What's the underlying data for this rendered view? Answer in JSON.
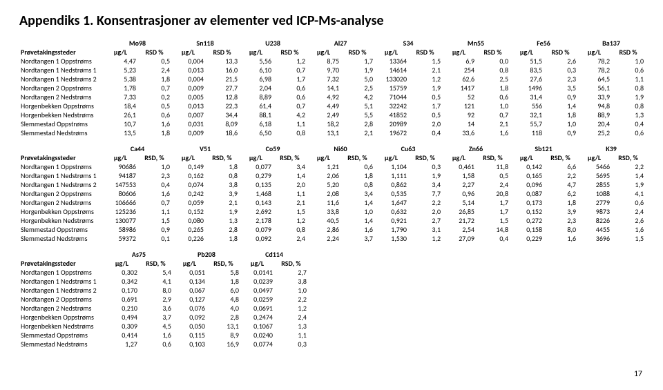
{
  "title": "Appendiks 1. Konsentrasjoner av elementer ved ICP-Ms-analyse",
  "pagenum": "17",
  "rowHeader": "Prøvetakingssteder",
  "unit_ug": "µg/L",
  "unit_rsd": "RSD %",
  "unit_rsdc": "RSD, %",
  "t1": {
    "elements": [
      "Mo98",
      "Sn118",
      "U238",
      "Al27",
      "S34",
      "Mn55",
      "Fe56",
      "Ba137"
    ],
    "rows": [
      {
        "label": "Nordtangen 1 Oppstrøms",
        "v": [
          "4,47",
          "0,5",
          "0,004",
          "13,3",
          "5,56",
          "1,2",
          "8,75",
          "1,7",
          "13364",
          "1,5",
          "6,9",
          "0,0",
          "51,5",
          "2,6",
          "78,2",
          "1,0"
        ]
      },
      {
        "label": "Nordtangen 1 Nedstrøms 1",
        "v": [
          "5,23",
          "2,4",
          "0,013",
          "16,0",
          "6,10",
          "0,7",
          "9,70",
          "1,9",
          "14614",
          "2,1",
          "254",
          "0,8",
          "83,5",
          "0,3",
          "78,2",
          "0,6"
        ]
      },
      {
        "label": "Nordtangen 1 Nedstrøms 2",
        "v": [
          "5,38",
          "1,8",
          "0,004",
          "21,5",
          "6,98",
          "1,7",
          "7,32",
          "5,0",
          "133020",
          "1,2",
          "62,6",
          "2,5",
          "27,6",
          "2,3",
          "64,5",
          "1,1"
        ]
      },
      {
        "label": "Nordtangen 2 Oppstrøms",
        "v": [
          "1,78",
          "0,7",
          "0,009",
          "27,7",
          "2,04",
          "0,6",
          "14,1",
          "2,5",
          "15759",
          "1,9",
          "1417",
          "1,8",
          "1496",
          "3,5",
          "56,1",
          "0,8"
        ]
      },
      {
        "label": "Nordtangen 2 Nedstrøms",
        "v": [
          "7,33",
          "0,2",
          "0,005",
          "12,8",
          "8,89",
          "0,6",
          "4,92",
          "4,2",
          "71044",
          "0,5",
          "52",
          "0,6",
          "31,4",
          "0,9",
          "33,9",
          "1,9"
        ]
      },
      {
        "label": "Horgenbekken Oppstrøms",
        "v": [
          "18,4",
          "0,5",
          "0,013",
          "22,3",
          "61,4",
          "0,7",
          "4,49",
          "5,1",
          "32242",
          "1,7",
          "121",
          "1,0",
          "556",
          "1,4",
          "94,8",
          "0,8"
        ]
      },
      {
        "label": "Horgenbekken Nedstrøms",
        "v": [
          "26,1",
          "0,6",
          "0,007",
          "34,4",
          "88,1",
          "4,2",
          "2,49",
          "5,5",
          "41852",
          "0,5",
          "92",
          "0,7",
          "32,1",
          "1,8",
          "88,9",
          "1,3"
        ]
      },
      {
        "label": "Slemmestad Oppstrøms",
        "v": [
          "10,7",
          "1,6",
          "0,031",
          "8,09",
          "6,18",
          "1,1",
          "18,2",
          "2,8",
          "20989",
          "2,0",
          "14",
          "2,1",
          "55,7",
          "1,0",
          "20,4",
          "0,4"
        ]
      },
      {
        "label": "Slemmestad Nedstrøms",
        "v": [
          "13,5",
          "1,8",
          "0,009",
          "18,6",
          "6,50",
          "0,8",
          "13,1",
          "2,1",
          "19672",
          "0,4",
          "33,6",
          "1,6",
          "118",
          "0,9",
          "25,2",
          "0,6"
        ]
      }
    ]
  },
  "t2": {
    "elements": [
      "Ca44",
      "V51",
      "Co59",
      "Ni60",
      "Cu63",
      "Zn66",
      "Sb121",
      "K39"
    ],
    "rows": [
      {
        "label": "Nordtangen 1 Oppstrøms",
        "v": [
          "90686",
          "1,0",
          "0,149",
          "1,8",
          "0,077",
          "3,4",
          "1,21",
          "0,6",
          "1,104",
          "0,3",
          "0,461",
          "11,8",
          "0,142",
          "6,6",
          "5466",
          "2,2"
        ]
      },
      {
        "label": "Nordtangen 1 Nedstrøms 1",
        "v": [
          "94187",
          "2,3",
          "0,162",
          "0,8",
          "0,279",
          "1,4",
          "2,06",
          "1,8",
          "1,111",
          "1,9",
          "1,58",
          "0,5",
          "0,165",
          "2,2",
          "5695",
          "1,4"
        ]
      },
      {
        "label": "Nordtangen 1 Nedstrøms 2",
        "v": [
          "147553",
          "0,4",
          "0,074",
          "3,8",
          "0,135",
          "2,0",
          "5,20",
          "0,8",
          "0,862",
          "3,4",
          "2,27",
          "2,4",
          "0,096",
          "4,7",
          "2855",
          "1,9"
        ]
      },
      {
        "label": "Nordtangen 2 Oppstrøms",
        "v": [
          "80606",
          "1,6",
          "0,242",
          "3,9",
          "1,468",
          "1,1",
          "2,08",
          "3,4",
          "0,535",
          "7,7",
          "0,96",
          "20,8",
          "0,087",
          "6,2",
          "1088",
          "4,1"
        ]
      },
      {
        "label": "Nordtangen 2 Nedstrøms",
        "v": [
          "106666",
          "0,7",
          "0,059",
          "2,1",
          "0,143",
          "2,1",
          "11,6",
          "1,4",
          "1,647",
          "2,2",
          "5,14",
          "1,7",
          "0,173",
          "1,8",
          "2779",
          "0,6"
        ]
      },
      {
        "label": "Horgenbekken Oppstrøms",
        "v": [
          "125236",
          "1,1",
          "0,152",
          "1,9",
          "2,692",
          "1,5",
          "33,8",
          "1,0",
          "0,632",
          "2,0",
          "26,85",
          "1,7",
          "0,152",
          "3,9",
          "9873",
          "2,4"
        ]
      },
      {
        "label": "Horgenbekken Nedstrøms",
        "v": [
          "130077",
          "1,5",
          "0,080",
          "1,3",
          "2,178",
          "1,2",
          "40,5",
          "1,4",
          "0,921",
          "2,7",
          "21,72",
          "1,5",
          "0,272",
          "2,3",
          "8226",
          "2,6"
        ]
      },
      {
        "label": "Slemmestad Oppstrøms",
        "v": [
          "58986",
          "0,9",
          "0,265",
          "2,8",
          "0,079",
          "0,8",
          "2,86",
          "1,6",
          "1,790",
          "3,1",
          "2,54",
          "14,8",
          "0,158",
          "8,0",
          "4455",
          "1,6"
        ]
      },
      {
        "label": "Slemmestad Nedstrøms",
        "v": [
          "59372",
          "0,1",
          "0,226",
          "1,8",
          "0,092",
          "2,4",
          "2,24",
          "3,7",
          "1,530",
          "1,2",
          "27,09",
          "0,4",
          "0,229",
          "1,6",
          "3696",
          "1,5"
        ]
      }
    ]
  },
  "t3": {
    "elements": [
      "As75",
      "Pb208",
      "Cd114"
    ],
    "rows": [
      {
        "label": "Nordtangen 1 Oppstrøms",
        "v": [
          "0,302",
          "5,4",
          "0,051",
          "5,8",
          "0,0141",
          "2,7"
        ]
      },
      {
        "label": "Nordtangen 1 Nedstrøms 1",
        "v": [
          "0,342",
          "4,1",
          "0,134",
          "1,8",
          "0,0239",
          "3,8"
        ]
      },
      {
        "label": "Nordtangen 1 Nedstrøms 2",
        "v": [
          "0,170",
          "8,0",
          "0,067",
          "6,0",
          "0,0497",
          "1,0"
        ]
      },
      {
        "label": "Nordtangen 2 Oppstrøms",
        "v": [
          "0,691",
          "2,9",
          "0,127",
          "4,8",
          "0,0259",
          "2,2"
        ]
      },
      {
        "label": "Nordtangen 2 Nedstrøms",
        "v": [
          "0,210",
          "3,6",
          "0,076",
          "4,0",
          "0,0691",
          "1,2"
        ]
      },
      {
        "label": "Horgenbekken Oppstrøms",
        "v": [
          "0,494",
          "3,7",
          "0,092",
          "2,8",
          "0,2474",
          "2,4"
        ]
      },
      {
        "label": "Horgenbekken Nedstrøms",
        "v": [
          "0,309",
          "4,5",
          "0,050",
          "13,1",
          "0,1067",
          "1,3"
        ]
      },
      {
        "label": "Slemmestad Oppstrøms",
        "v": [
          "0,414",
          "1,6",
          "0,115",
          "8,9",
          "0,0240",
          "1,1"
        ]
      },
      {
        "label": "Slemmestad Nedstrøms",
        "v": [
          "1,27",
          "0,6",
          "0,103",
          "16,9",
          "0,0774",
          "0,3"
        ]
      }
    ]
  }
}
